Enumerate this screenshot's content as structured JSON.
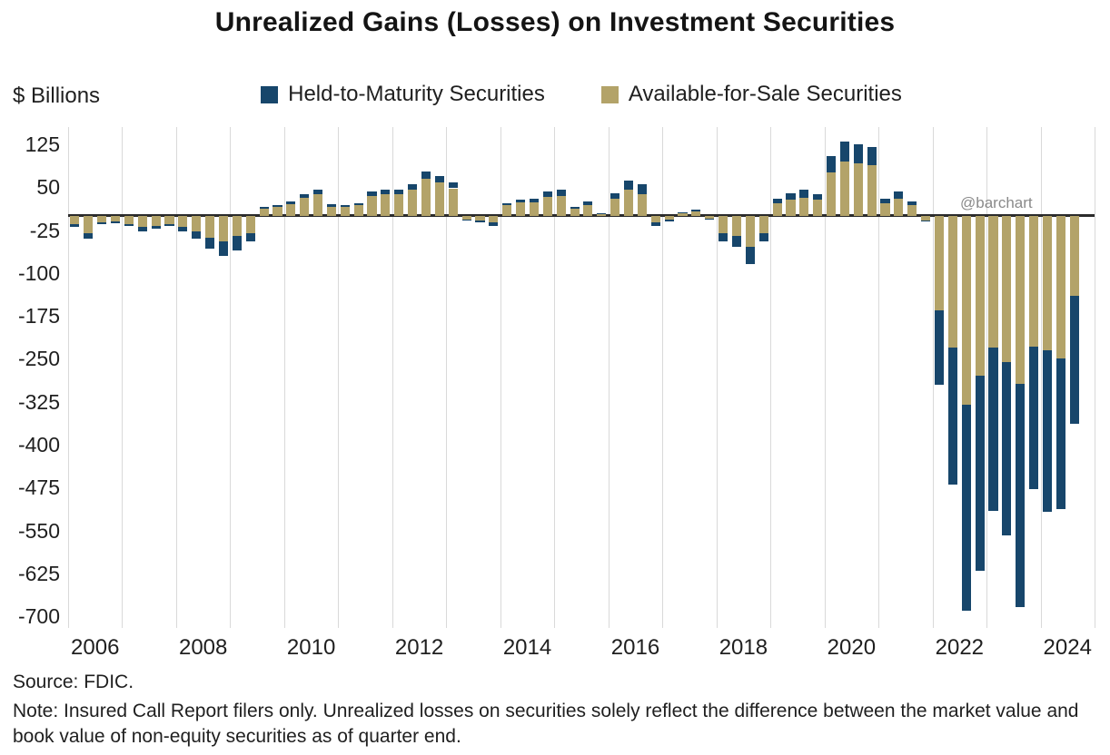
{
  "title": "Unrealized Gains (Losses) on Investment Securities",
  "axis_label": "$ Billions",
  "legend": [
    {
      "label": "Held-to-Maturity Securities",
      "color": "#17466b"
    },
    {
      "label": "Available-for-Sale Securities",
      "color": "#b3a369"
    }
  ],
  "watermark": "@barchart",
  "source": "Source: FDIC.",
  "note": "Note: Insured Call Report filers only. Unrealized losses on securities solely reflect the difference between the market value and book value of non-equity securities as of quarter end.",
  "chart_data": {
    "type": "bar",
    "stacked": true,
    "title": "Unrealized Gains (Losses) on Investment Securities",
    "ylabel": "$ Billions",
    "ylim": [
      -700,
      125
    ],
    "yticks": [
      125,
      50,
      -25,
      -100,
      -175,
      -250,
      -325,
      -400,
      -475,
      -550,
      -625,
      -700
    ],
    "x_tick_years": [
      2006,
      2008,
      2010,
      2012,
      2014,
      2016,
      2018,
      2020,
      2022,
      2024
    ],
    "grid": "vertical-yearly",
    "legend_position": "top",
    "quarters": [
      "2006Q1",
      "2006Q2",
      "2006Q3",
      "2006Q4",
      "2007Q1",
      "2007Q2",
      "2007Q3",
      "2007Q4",
      "2008Q1",
      "2008Q2",
      "2008Q3",
      "2008Q4",
      "2009Q1",
      "2009Q2",
      "2009Q3",
      "2009Q4",
      "2010Q1",
      "2010Q2",
      "2010Q3",
      "2010Q4",
      "2011Q1",
      "2011Q2",
      "2011Q3",
      "2011Q4",
      "2012Q1",
      "2012Q2",
      "2012Q3",
      "2012Q4",
      "2013Q1",
      "2013Q2",
      "2013Q3",
      "2013Q4",
      "2014Q1",
      "2014Q2",
      "2014Q3",
      "2014Q4",
      "2015Q1",
      "2015Q2",
      "2015Q3",
      "2015Q4",
      "2016Q1",
      "2016Q2",
      "2016Q3",
      "2016Q4",
      "2017Q1",
      "2017Q2",
      "2017Q3",
      "2017Q4",
      "2018Q1",
      "2018Q2",
      "2018Q3",
      "2018Q4",
      "2019Q1",
      "2019Q2",
      "2019Q3",
      "2019Q4",
      "2020Q1",
      "2020Q2",
      "2020Q3",
      "2020Q4",
      "2021Q1",
      "2021Q2",
      "2021Q3",
      "2021Q4",
      "2022Q1",
      "2022Q2",
      "2022Q3",
      "2022Q4",
      "2023Q1",
      "2023Q2",
      "2023Q3",
      "2023Q4",
      "2024Q1",
      "2024Q2",
      "2024Q3"
    ],
    "series": [
      {
        "name": "Available-for-Sale Securities",
        "color": "#b3a369",
        "values": [
          -15,
          -30,
          -12,
          -10,
          -14,
          -20,
          -18,
          -14,
          -20,
          -28,
          -38,
          -45,
          -35,
          -30,
          13,
          15,
          20,
          32,
          38,
          16,
          15,
          18,
          35,
          38,
          38,
          46,
          65,
          58,
          48,
          -6,
          -8,
          -12,
          18,
          23,
          24,
          33,
          35,
          12,
          19,
          4,
          30,
          45,
          38,
          -12,
          -7,
          5,
          8,
          -5,
          -30,
          -35,
          -55,
          -30,
          22,
          28,
          32,
          28,
          75,
          95,
          92,
          88,
          22,
          30,
          18,
          -8,
          -165,
          -230,
          -330,
          -280,
          -230,
          -255,
          -293,
          -228,
          -235,
          -250,
          -140
        ]
      },
      {
        "name": "Held-to-Maturity Securities",
        "color": "#17466b",
        "values": [
          -4,
          -10,
          -3,
          -3,
          -4,
          -7,
          -5,
          -4,
          -8,
          -12,
          -20,
          -25,
          -25,
          -15,
          2,
          3,
          5,
          6,
          7,
          4,
          3,
          4,
          7,
          8,
          7,
          9,
          13,
          12,
          10,
          -2,
          -3,
          -6,
          4,
          5,
          6,
          9,
          10,
          3,
          6,
          1,
          10,
          17,
          17,
          -6,
          -3,
          1,
          2,
          -2,
          -15,
          -20,
          -30,
          -15,
          8,
          12,
          13,
          10,
          30,
          35,
          33,
          32,
          8,
          12,
          7,
          -2,
          -130,
          -240,
          -360,
          -340,
          -286,
          -303,
          -391,
          -250,
          -282,
          -263,
          -224
        ]
      }
    ]
  }
}
